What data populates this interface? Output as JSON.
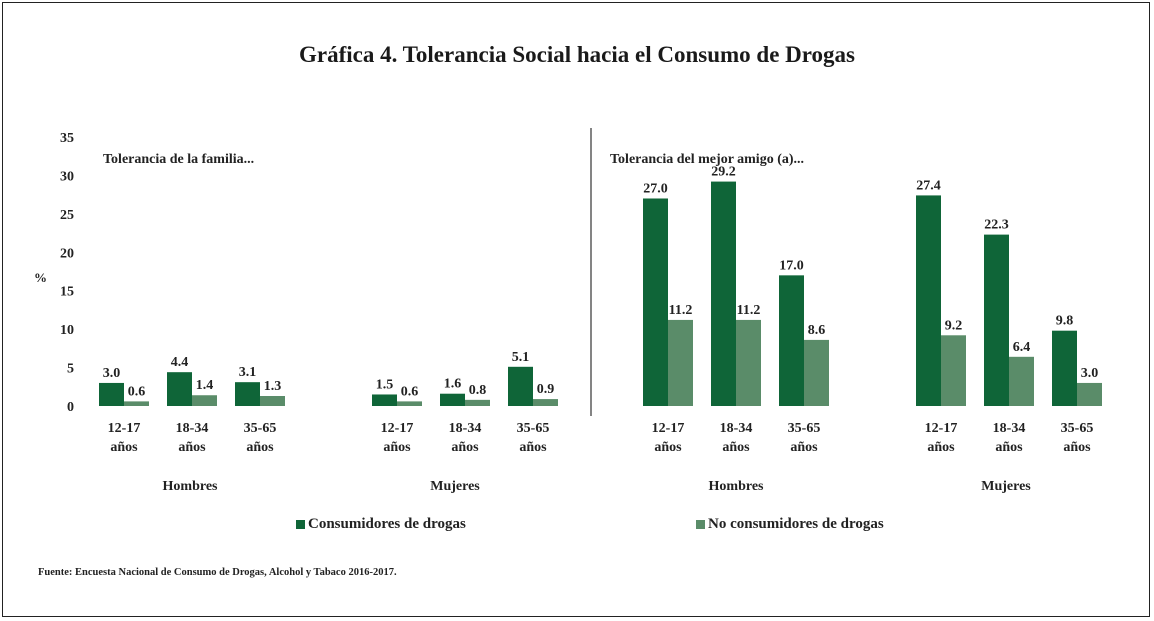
{
  "title": "Gráfica 4. Tolerancia Social hacia el Consumo de Drogas",
  "source": "Fuente: Encuesta Nacional de Consumo de Drogas, Alcohol y Tabaco 2016-2017.",
  "colors": {
    "consumidores": "#0f6538",
    "no_consumidores": "#5a8c69"
  },
  "legend": [
    "Consumidores de drogas",
    "No consumidores de drogas"
  ],
  "chart_data": {
    "type": "bar",
    "ylabel": "%",
    "ylim": [
      0,
      35
    ],
    "yticks": [
      "0",
      "5",
      "10",
      "15",
      "20",
      "25",
      "30",
      "35"
    ],
    "grid": false,
    "legend_position": "bottom",
    "panels": [
      {
        "title": "Tolerancia de la familia...",
        "groups": [
          {
            "name": "Hombres",
            "categories": [
              "12-17 años",
              "18-34 años",
              "35-65 años"
            ],
            "series": [
              {
                "name": "Consumidores de drogas",
                "values": [
                  3.0,
                  4.4,
                  3.1
                ]
              },
              {
                "name": "No consumidores de drogas",
                "values": [
                  0.6,
                  1.4,
                  1.3
                ]
              }
            ]
          },
          {
            "name": "Mujeres",
            "categories": [
              "12-17 años",
              "18-34 años",
              "35-65 años"
            ],
            "series": [
              {
                "name": "Consumidores de drogas",
                "values": [
                  1.5,
                  1.6,
                  5.1
                ]
              },
              {
                "name": "No consumidores de drogas",
                "values": [
                  0.6,
                  0.8,
                  0.9
                ]
              }
            ]
          }
        ]
      },
      {
        "title": "Tolerancia del mejor amigo (a)...",
        "groups": [
          {
            "name": "Hombres",
            "categories": [
              "12-17 años",
              "18-34 años",
              "35-65 años"
            ],
            "series": [
              {
                "name": "Consumidores de drogas",
                "values": [
                  27.0,
                  29.2,
                  17.0
                ]
              },
              {
                "name": "No consumidores de drogas",
                "values": [
                  11.2,
                  11.2,
                  8.6
                ]
              }
            ]
          },
          {
            "name": "Mujeres",
            "categories": [
              "12-17 años",
              "18-34 años",
              "35-65 años"
            ],
            "series": [
              {
                "name": "Consumidores de drogas",
                "values": [
                  27.4,
                  22.3,
                  9.8
                ]
              },
              {
                "name": "No consumidores de drogas",
                "values": [
                  9.2,
                  6.4,
                  3.0
                ]
              }
            ]
          }
        ]
      }
    ]
  }
}
